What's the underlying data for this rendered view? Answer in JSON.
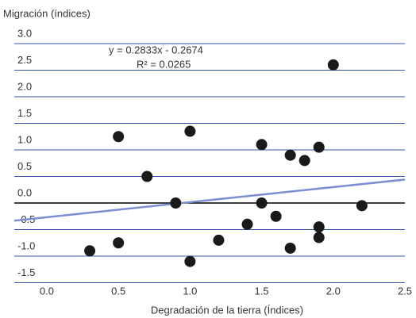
{
  "chart_data": {
    "type": "scatter",
    "y_label": "Migración (índices)",
    "x_label": "Degradación de la tierra (Índices)",
    "equation": "y = 0.2833x - 0.2674",
    "r_squared": "R² = 0.0265",
    "trendline": {
      "slope": 0.2833,
      "intercept": -0.2674,
      "color": "#7b8ed1"
    },
    "x": [
      0.3,
      0.5,
      0.5,
      0.7,
      0.9,
      1.0,
      1.0,
      1.2,
      1.4,
      1.5,
      1.5,
      1.6,
      1.7,
      1.7,
      1.8,
      1.9,
      1.9,
      1.9,
      2.0,
      2.2
    ],
    "values": [
      -0.9,
      -0.75,
      1.25,
      0.5,
      0.0,
      1.35,
      -1.1,
      -0.7,
      -0.4,
      1.1,
      0.0,
      -0.25,
      0.9,
      -0.85,
      0.8,
      1.05,
      -0.45,
      -0.65,
      2.6,
      -0.05
    ],
    "color": "#1a1a1a",
    "xlim": [
      -0.227,
      2.5
    ],
    "ylim": [
      -1.5,
      3.0
    ],
    "xticks": [
      {
        "value": 0,
        "label": "0.0"
      },
      0.5,
      {
        "value": 1,
        "label": "1.0"
      },
      1.5,
      {
        "value": 2,
        "label": "2.0"
      },
      2.5
    ],
    "yticks": [
      {
        "value": 3,
        "label": "3.0"
      },
      2.5,
      {
        "value": 2,
        "label": "2.0"
      },
      1.5,
      {
        "value": 1,
        "label": "1.0"
      },
      0.5,
      {
        "value": 0,
        "label": "0.0"
      },
      -0.5,
      {
        "value": -1,
        "label": "-1.0"
      },
      -1.5
    ],
    "grid": true,
    "grid_color": "#3355a8",
    "zero_line_color": "#000000"
  }
}
